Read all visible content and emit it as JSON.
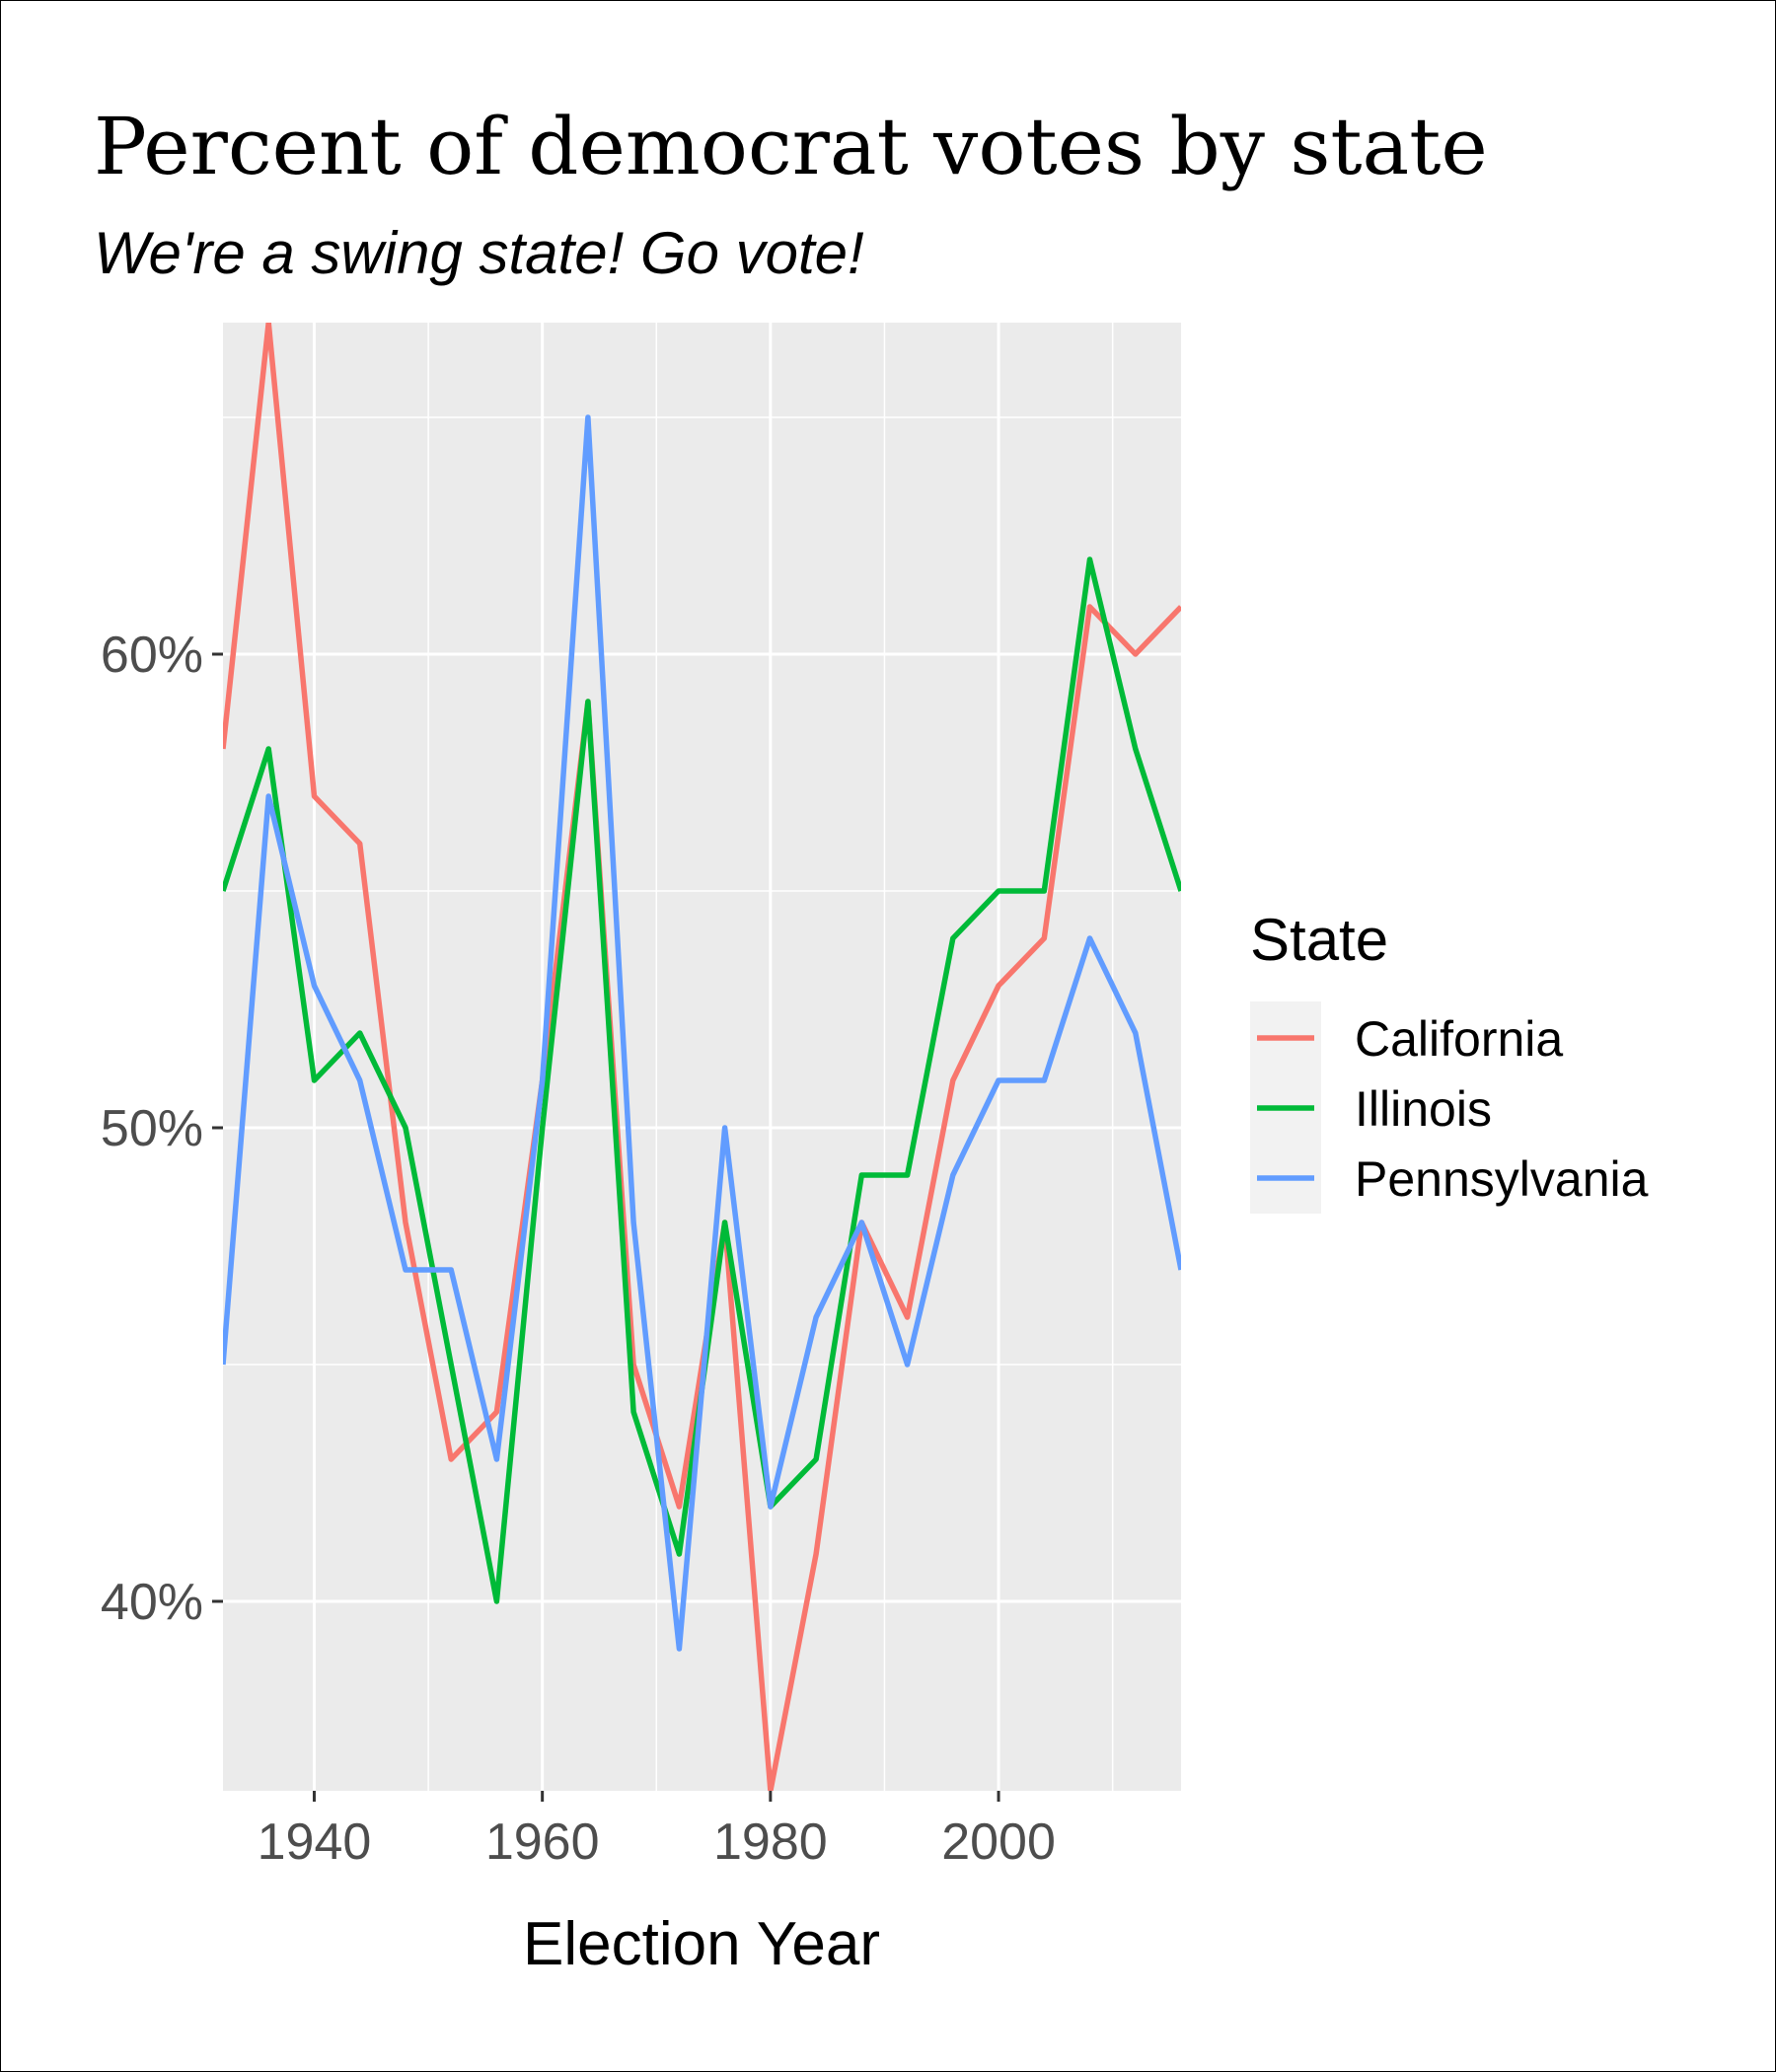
{
  "chart_data": {
    "type": "line",
    "title": "Percent of democrat votes by state",
    "subtitle": "We're a swing state! Go vote!",
    "xlabel": "Election Year",
    "ylabel": "",
    "x": [
      1932,
      1936,
      1940,
      1944,
      1948,
      1952,
      1956,
      1960,
      1964,
      1968,
      1972,
      1976,
      1980,
      1984,
      1988,
      1992,
      1996,
      2000,
      2004,
      2008,
      2012,
      2016
    ],
    "xlim": [
      1932,
      2016
    ],
    "ylim": [
      36,
      67
    ],
    "x_ticks": [
      1940,
      1960,
      1980,
      2000
    ],
    "x_tick_labels": [
      "1940",
      "1960",
      "1980",
      "2000"
    ],
    "y_ticks": [
      40,
      50,
      60
    ],
    "y_tick_labels": [
      "40%",
      "50%",
      "60%"
    ],
    "grid": true,
    "legend_title": "State",
    "legend_position": "right",
    "series": [
      {
        "name": "California",
        "color": "#F8766D",
        "values": [
          58,
          67,
          57,
          56,
          48,
          43,
          44,
          51,
          59,
          45,
          42,
          48,
          36,
          41,
          48,
          46,
          51,
          53,
          54,
          61,
          60,
          61
        ]
      },
      {
        "name": "Illinois",
        "color": "#00BA38",
        "values": [
          55,
          58,
          51,
          52,
          50,
          45,
          40,
          50,
          59,
          44,
          41,
          48,
          42,
          43,
          49,
          49,
          54,
          55,
          55,
          62,
          58,
          55
        ]
      },
      {
        "name": "Pennsylvania",
        "color": "#619CFF",
        "values": [
          45,
          57,
          53,
          51,
          47,
          47,
          43,
          51,
          65,
          48,
          39,
          50,
          42,
          46,
          48,
          45,
          49,
          51,
          51,
          54,
          52,
          47
        ]
      }
    ]
  }
}
